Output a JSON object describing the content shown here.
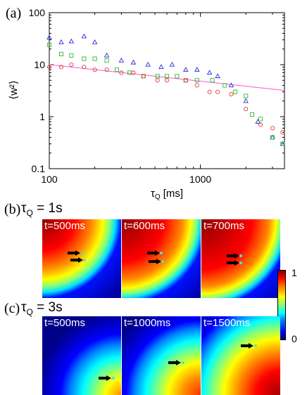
{
  "panel_a": {
    "label": "(a)",
    "chart_data": {
      "type": "scatter",
      "title": "",
      "xlabel_symbol": "τ",
      "xlabel_sub": "Q",
      "xlabel_unit": "[ms]",
      "ylabel": "⟨w²⟩",
      "xscale": "log",
      "yscale": "log",
      "xlim": [
        100,
        3600
      ],
      "ylim": [
        0.1,
        100
      ],
      "xticks": [
        {
          "v": 100,
          "label": "100"
        },
        {
          "v": 1000,
          "label": "1000"
        }
      ],
      "yticks": [
        {
          "v": 0.1,
          "label": "0.1"
        },
        {
          "v": 1,
          "label": "1"
        },
        {
          "v": 10,
          "label": "10"
        },
        {
          "v": 100,
          "label": "100"
        }
      ],
      "series": [
        {
          "marker": "triangle",
          "color": "#2a2ad8",
          "points": [
            [
              100,
              33
            ],
            [
              120,
              27
            ],
            [
              140,
              28
            ],
            [
              170,
              35
            ],
            [
              200,
              27
            ],
            [
              240,
              15
            ],
            [
              300,
              12
            ],
            [
              360,
              11
            ],
            [
              450,
              10
            ],
            [
              550,
              9
            ],
            [
              650,
              10
            ],
            [
              800,
              8
            ],
            [
              950,
              8
            ],
            [
              1150,
              7
            ],
            [
              1300,
              6
            ],
            [
              1600,
              4
            ],
            [
              2000,
              2
            ],
            [
              2400,
              0.8
            ],
            [
              3000,
              0.4
            ],
            [
              3500,
              0.3
            ]
          ]
        },
        {
          "marker": "square",
          "color": "#33b833",
          "points": [
            [
              100,
              24
            ],
            [
              120,
              16
            ],
            [
              140,
              15
            ],
            [
              170,
              13
            ],
            [
              200,
              13
            ],
            [
              240,
              12
            ],
            [
              280,
              8
            ],
            [
              340,
              7
            ],
            [
              420,
              6
            ],
            [
              520,
              6
            ],
            [
              600,
              6
            ],
            [
              700,
              6
            ],
            [
              800,
              5
            ],
            [
              950,
              5
            ],
            [
              1200,
              5
            ],
            [
              1450,
              4
            ],
            [
              1700,
              3
            ],
            [
              2000,
              2.5
            ],
            [
              2200,
              1.1
            ],
            [
              2500,
              0.9
            ],
            [
              3000,
              0.4
            ],
            [
              3500,
              0.3
            ]
          ]
        },
        {
          "marker": "circle",
          "color": "#e03c3c",
          "points": [
            [
              100,
              9
            ],
            [
              120,
              9
            ],
            [
              140,
              10
            ],
            [
              170,
              9
            ],
            [
              200,
              8
            ],
            [
              240,
              8
            ],
            [
              300,
              7
            ],
            [
              360,
              7
            ],
            [
              420,
              6
            ],
            [
              520,
              5
            ],
            [
              600,
              5
            ],
            [
              800,
              5
            ],
            [
              950,
              4
            ],
            [
              1150,
              3
            ],
            [
              1300,
              3
            ],
            [
              1600,
              2.7
            ],
            [
              2000,
              1.4
            ],
            [
              2500,
              0.7
            ],
            [
              3000,
              0.6
            ],
            [
              3500,
              0.5
            ]
          ]
        }
      ],
      "fit_line": {
        "color": "#ff55cc",
        "x": [
          100,
          3600
        ],
        "y": [
          10,
          3.2
        ]
      }
    }
  },
  "panel_b": {
    "label": "(b)",
    "title_symbol": "τ",
    "title_sub": "Q",
    "title_value": "= 1s",
    "tiles": [
      {
        "label": "t=500ms"
      },
      {
        "label": "t=600ms"
      },
      {
        "label": "t=700ms"
      }
    ]
  },
  "panel_c": {
    "label": "(c)",
    "title_symbol": "τ",
    "title_sub": "Q",
    "title_value": "= 3s",
    "tiles": [
      {
        "label": "t=500ms"
      },
      {
        "label": "t=1000ms"
      },
      {
        "label": "t=1500ms"
      }
    ]
  },
  "colorbar": {
    "max_label": "1",
    "min_label": "0"
  }
}
